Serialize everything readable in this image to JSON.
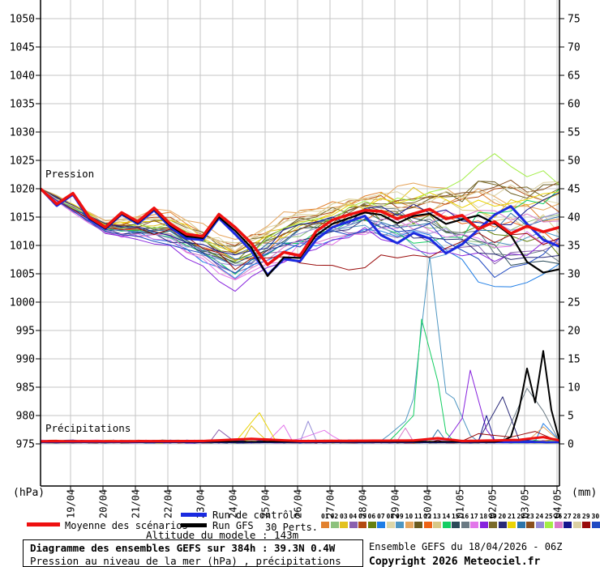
{
  "page": {
    "bg": "#ffffff"
  },
  "chart_data": {
    "type": "line",
    "title": "Diagramme des ensembles GEFS sur 384h : 39.3N 0.4W",
    "subtitle": "Pression au niveau de la mer (hPa) , précipitations (mm)",
    "pressure_label": "Pression",
    "precip_label": "Précipitations",
    "grid_color": "#c6c6c6",
    "left_axis": {
      "unit": "(hPa)",
      "min": 975,
      "max": 1050,
      "step": 5,
      "ticks": [
        "1050",
        "1045",
        "1040",
        "1035",
        "1030",
        "1025",
        "1020",
        "1015",
        "1010",
        "1005",
        "1000",
        "995",
        "990",
        "985",
        "980",
        "975"
      ]
    },
    "right_axis": {
      "unit": "(mm)",
      "min": 0,
      "max": 75,
      "step": 5,
      "ticks": [
        "75",
        "70",
        "65",
        "60",
        "55",
        "50",
        "45",
        "40",
        "35",
        "30",
        "25",
        "20",
        "15",
        "10",
        "5",
        "0"
      ]
    },
    "x_dates": [
      "19/04",
      "20/04",
      "21/04",
      "22/04",
      "23/04",
      "24/04",
      "25/04",
      "26/04",
      "27/04",
      "28/04",
      "29/04",
      "30/04",
      "01/05",
      "02/05",
      "03/05",
      "04/05"
    ],
    "series": {
      "mean": {
        "name": "Moyenne des scénarios",
        "color": "#ee1010",
        "pressure": [
          1020.0,
          1017.3,
          1019.2,
          1015.0,
          1013.2,
          1015.8,
          1014.2,
          1016.6,
          1013.8,
          1012.0,
          1011.6,
          1015.5,
          1013.2,
          1010.4,
          1006.6,
          1008.8,
          1008.2,
          1012.5,
          1014.5,
          1015.4,
          1016.2,
          1016.0,
          1014.7,
          1015.6,
          1016.4,
          1014.7,
          1015.3,
          1012.9,
          1014.2,
          1012.1,
          1013.4,
          1012.4,
          1013.2
        ],
        "precip_base": 0.45,
        "precip_spikes": [
          [
            0,
            0.45
          ],
          [
            5,
            0.5
          ],
          [
            6.5,
            0.9
          ],
          [
            8,
            0.5
          ],
          [
            11.5,
            0.6
          ],
          [
            12.25,
            1.0
          ],
          [
            13,
            0.5
          ],
          [
            14.75,
            0.7
          ],
          [
            15.5,
            1.2
          ],
          [
            16,
            0.6
          ]
        ]
      },
      "control": {
        "name": "Run de contrôle",
        "color": "#1a2ae0",
        "pressure": [
          1020.0,
          1017.0,
          1019.0,
          1014.6,
          1012.9,
          1015.5,
          1013.8,
          1016.2,
          1013.2,
          1011.2,
          1011.0,
          1014.8,
          1012.0,
          1009.0,
          1004.8,
          1007.6,
          1007.2,
          1011.0,
          1013.2,
          1014.2,
          1015.2,
          1011.8,
          1010.4,
          1012.2,
          1011.2,
          1008.6,
          1010.2,
          1012.8,
          1015.4,
          1016.9,
          1013.8,
          1011.0,
          1009.8
        ],
        "precip_base": 0.3,
        "precip_spikes": [
          [
            0,
            0.3
          ],
          [
            16,
            0.3
          ]
        ]
      },
      "gfs": {
        "name": "Run GFS",
        "color": "#000000",
        "pressure": [
          1020.0,
          1017.2,
          1019.1,
          1014.8,
          1013.0,
          1015.6,
          1014.0,
          1016.4,
          1013.5,
          1011.6,
          1011.3,
          1015.0,
          1012.6,
          1009.6,
          1004.6,
          1007.9,
          1007.8,
          1011.8,
          1013.8,
          1014.8,
          1015.8,
          1015.4,
          1013.9,
          1015.2,
          1015.6,
          1013.8,
          1014.6,
          1015.3,
          1013.9,
          1011.8,
          1007.1,
          1005.2,
          1005.8
        ],
        "precip_base": 0.35,
        "precip_spikes": [
          [
            14.2,
            0.4
          ],
          [
            14.6,
            1.5
          ],
          [
            15.0,
            13.3
          ],
          [
            15.25,
            7.3
          ],
          [
            15.5,
            16.4
          ],
          [
            15.75,
            6.0
          ],
          [
            16,
            0.6
          ]
        ]
      },
      "members": [
        {
          "id": "01",
          "color": "#e2812e",
          "pressure": [
            1020,
            1013.5,
            1015.5,
            1009.0,
            1016.0,
            1019.0,
            1017.5,
            1019.0,
            1015.0
          ]
        },
        {
          "id": "02",
          "color": "#8cc17c",
          "pressure": [
            1020,
            1013.0,
            1012.0,
            1006.5,
            1012.0,
            1015.5,
            1013.0,
            1010.5,
            1016.0
          ]
        },
        {
          "id": "03",
          "color": "#e3c220",
          "pressure": [
            1020,
            1014.0,
            1013.5,
            1008.5,
            1014.5,
            1017.5,
            1019.5,
            1016.0,
            1019.5
          ],
          "precip_spikes": [
            [
              6.25,
              0.3
            ],
            [
              6.5,
              3.2
            ],
            [
              7.0,
              0.3
            ]
          ]
        },
        {
          "id": "04",
          "color": "#8a5fae",
          "pressure": [
            1020,
            1012.5,
            1011.5,
            1005.0,
            1011.0,
            1013.5,
            1010.5,
            1008.0,
            1009.5
          ],
          "precip_spikes": [
            [
              5.25,
              0.3
            ],
            [
              5.5,
              2.5
            ],
            [
              6.0,
              0.3
            ]
          ]
        },
        {
          "id": "05",
          "color": "#b44a10",
          "pressure": [
            1020,
            1013.8,
            1014.5,
            1009.5,
            1015.5,
            1018.0,
            1016.5,
            1020.0,
            1017.0
          ]
        },
        {
          "id": "06",
          "color": "#66800e",
          "pressure": [
            1020,
            1013.2,
            1012.8,
            1007.5,
            1013.0,
            1016.0,
            1014.5,
            1012.0,
            1010.0
          ]
        },
        {
          "id": "07",
          "color": "#1e7de6",
          "pressure": [
            1020,
            1012.8,
            1011.0,
            1004.5,
            1010.0,
            1013.0,
            1011.5,
            1002.0,
            1008.0
          ],
          "precip_spikes": [
            [
              15.25,
              0.4
            ],
            [
              15.5,
              3.6
            ],
            [
              16,
              0.6
            ]
          ]
        },
        {
          "id": "08",
          "color": "#ddd6a8",
          "pressure": [
            1020,
            1014.2,
            1014.0,
            1009.8,
            1015.0,
            1017.5,
            1019.0,
            1017.0,
            1018.5
          ]
        },
        {
          "id": "09",
          "color": "#4e96c2",
          "pressure": [
            1020,
            1013.0,
            1012.0,
            1006.0,
            1011.5,
            1014.0,
            1008.5,
            1011.0,
            1012.5
          ],
          "precip_spikes": [
            [
              10.5,
              0.4
            ],
            [
              11.25,
              4.0
            ],
            [
              11.5,
              8.0
            ],
            [
              12.0,
              33.0
            ],
            [
              12.5,
              9.0
            ],
            [
              12.75,
              8.0
            ],
            [
              13.25,
              1.5
            ],
            [
              13.5,
              0.4
            ]
          ]
        },
        {
          "id": "10",
          "color": "#e6a65e",
          "pressure": [
            1020,
            1014.5,
            1016.5,
            1011.0,
            1016.5,
            1018.5,
            1020.0,
            1018.0,
            1016.0
          ],
          "precip_spikes": [
            [
              15.0,
              0.4
            ],
            [
              15.5,
              3.0
            ],
            [
              16,
              0.5
            ]
          ]
        },
        {
          "id": "11",
          "color": "#6a5a1e",
          "pressure": [
            1020,
            1013.6,
            1013.0,
            1008.0,
            1014.0,
            1016.5,
            1018.0,
            1020.5,
            1019.0
          ]
        },
        {
          "id": "12",
          "color": "#ee6214",
          "pressure": [
            1020,
            1013.4,
            1012.5,
            1007.0,
            1012.5,
            1015.0,
            1016.0,
            1013.0,
            1011.5
          ]
        },
        {
          "id": "13",
          "color": "#d7c886",
          "pressure": [
            1020,
            1014.0,
            1015.0,
            1010.0,
            1015.8,
            1018.0,
            1017.0,
            1015.5,
            1013.5
          ]
        },
        {
          "id": "14",
          "color": "#14ce62",
          "pressure": [
            1020,
            1012.6,
            1011.8,
            1005.5,
            1011.0,
            1014.5,
            1009.5,
            1016.0,
            1019.0
          ],
          "precip_spikes": [
            [
              10.75,
              0.4
            ],
            [
              11.5,
              5.0
            ],
            [
              11.75,
              22.0
            ],
            [
              12.25,
              11.0
            ],
            [
              12.5,
              2.0
            ],
            [
              12.75,
              0.4
            ]
          ]
        },
        {
          "id": "15",
          "color": "#2a4a58",
          "pressure": [
            1020,
            1013.1,
            1012.2,
            1006.8,
            1012.8,
            1015.8,
            1014.0,
            1009.0,
            1005.5
          ]
        },
        {
          "id": "16",
          "color": "#6a7a84",
          "pressure": [
            1020,
            1013.3,
            1013.2,
            1008.2,
            1013.6,
            1016.2,
            1015.0,
            1010.0,
            1006.5
          ],
          "precip_spikes": [
            [
              14.25,
              0.4
            ],
            [
              15.0,
              9.8
            ],
            [
              15.5,
              5.8
            ],
            [
              16,
              0.4
            ]
          ]
        },
        {
          "id": "17",
          "color": "#e276ea",
          "pressure": [
            1020,
            1012.4,
            1010.5,
            1003.5,
            1009.5,
            1012.5,
            1013.5,
            1011.0,
            1012.0
          ],
          "precip_spikes": [
            [
              7.0,
              0.4
            ],
            [
              7.5,
              3.3
            ],
            [
              7.75,
              0.4
            ],
            [
              8.75,
              2.4
            ],
            [
              9.25,
              0.4
            ]
          ]
        },
        {
          "id": "18",
          "color": "#8722dd",
          "pressure": [
            1020,
            1012.2,
            1010.0,
            1002.5,
            1009.0,
            1012.0,
            1010.0,
            1007.5,
            1010.5
          ],
          "precip_spikes": [
            [
              12.5,
              0.4
            ],
            [
              13.0,
              4.5
            ],
            [
              13.25,
              13.0
            ],
            [
              13.75,
              2.5
            ],
            [
              14.0,
              0.4
            ]
          ]
        },
        {
          "id": "19",
          "color": "#7a6a2a",
          "pressure": [
            1020,
            1013.7,
            1014.2,
            1009.2,
            1014.8,
            1017.0,
            1018.5,
            1021.5,
            1020.0
          ]
        },
        {
          "id": "20",
          "color": "#2a2a78",
          "pressure": [
            1020,
            1012.9,
            1011.2,
            1005.8,
            1011.2,
            1013.8,
            1012.0,
            1009.0,
            1007.0
          ],
          "precip_spikes": [
            [
              13.5,
              0.6
            ],
            [
              14.25,
              8.3
            ],
            [
              14.75,
              0.8
            ]
          ]
        },
        {
          "id": "21",
          "color": "#ead406",
          "pressure": [
            1020,
            1013.9,
            1014.8,
            1008.8,
            1013.2,
            1016.8,
            1018.0,
            1017.5,
            1021.0
          ],
          "precip_spikes": [
            [
              6.0,
              0.3
            ],
            [
              6.75,
              5.5
            ],
            [
              7.25,
              0.4
            ]
          ]
        },
        {
          "id": "22",
          "color": "#2c74a8",
          "pressure": [
            1020,
            1013.2,
            1012.6,
            1007.2,
            1012.2,
            1015.2,
            1013.5,
            1014.0,
            1015.5
          ],
          "precip_spikes": [
            [
              12.0,
              0.3
            ],
            [
              12.25,
              2.5
            ],
            [
              12.5,
              0.4
            ]
          ]
        },
        {
          "id": "23",
          "color": "#8a4f1e",
          "pressure": [
            1020,
            1013.5,
            1013.8,
            1008.6,
            1013.4,
            1016.4,
            1017.5,
            1019.5,
            1021.5
          ]
        },
        {
          "id": "24",
          "color": "#938ad6",
          "pressure": [
            1020,
            1012.7,
            1011.6,
            1006.2,
            1011.8,
            1014.2,
            1011.0,
            1013.0,
            1014.0
          ],
          "precip_spikes": [
            [
              8.0,
              0.3
            ],
            [
              8.25,
              4.0
            ],
            [
              8.5,
              0.4
            ]
          ]
        },
        {
          "id": "25",
          "color": "#a2ee46",
          "pressure": [
            1020,
            1013.4,
            1013.4,
            1007.8,
            1013.8,
            1016.6,
            1019.0,
            1025.5,
            1022.0
          ]
        },
        {
          "id": "26",
          "color": "#d87ac8",
          "pressure": [
            1020,
            1012.5,
            1011.4,
            1004.2,
            1010.5,
            1013.2,
            1014.5,
            1016.5,
            1013.0
          ],
          "precip_spikes": [
            [
              11.0,
              0.3
            ],
            [
              11.25,
              2.8
            ],
            [
              11.5,
              0.4
            ]
          ]
        },
        {
          "id": "27",
          "color": "#14148e",
          "pressure": [
            1020,
            1013.6,
            1012.4,
            1007.6,
            1013.2,
            1015.6,
            1016.5,
            1014.5,
            1017.5
          ],
          "precip_spikes": [
            [
              13.5,
              0.4
            ],
            [
              13.75,
              5.0
            ],
            [
              14.0,
              0.5
            ]
          ]
        },
        {
          "id": "28",
          "color": "#dbd0a2",
          "pressure": [
            1020,
            1014.1,
            1014.6,
            1009.4,
            1015.2,
            1017.2,
            1018.5,
            1018.5,
            1020.5
          ]
        },
        {
          "id": "29",
          "color": "#990a0a",
          "pressure": [
            1020,
            1013.0,
            1012.3,
            1006.4,
            1008.0,
            1006.5,
            1009.0,
            1011.5,
            1010.0
          ],
          "precip_spikes": [
            [
              13.0,
              0.5
            ],
            [
              13.5,
              1.8
            ],
            [
              14.5,
              1.2
            ],
            [
              15.25,
              2.2
            ],
            [
              15.75,
              1.0
            ]
          ]
        },
        {
          "id": "30",
          "color": "#2049c2",
          "pressure": [
            1020,
            1012.3,
            1010.8,
            1005.2,
            1010.8,
            1013.6,
            1012.5,
            1005.0,
            1011.0
          ]
        }
      ]
    }
  },
  "legend": {
    "mean_label": "Moyenne des scénarios",
    "control_label": "Run de contrôle",
    "gfs_label": "Run GFS",
    "perts_label": "30 Perts.",
    "altitude_text": "Altitude du modele : 143m"
  },
  "perts": {
    "numbers": [
      "01",
      "02",
      "03",
      "04",
      "05",
      "06",
      "07",
      "08",
      "09",
      "10",
      "11",
      "12",
      "13",
      "14",
      "15",
      "16",
      "17",
      "18",
      "19",
      "20",
      "21",
      "22",
      "23",
      "24",
      "25",
      "26",
      "27",
      "28",
      "29",
      "30"
    ]
  },
  "footer": {
    "box_line1": "Diagramme des ensembles GEFS sur 384h : 39.3N 0.4W",
    "box_line2": "Pression au niveau de la mer (hPa) , précipitations (mm)",
    "run_info": "Ensemble GEFS du 18/04/2026 - 06Z",
    "copyright": "Copyright 2026 Meteociel.fr"
  }
}
